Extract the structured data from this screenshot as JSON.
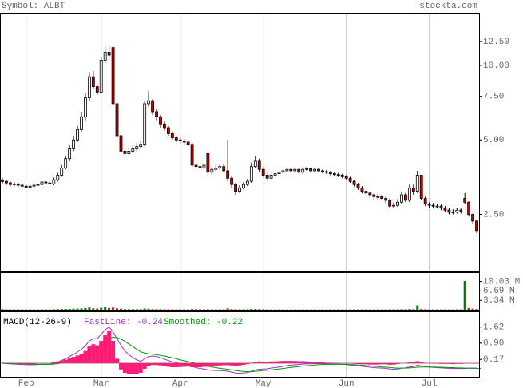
{
  "chart_data": [
    {
      "type": "candlestick",
      "title": "Symbol: ALBT",
      "source": "stockta.com",
      "log_scale": true,
      "xlim": [
        -0.6,
        120.6
      ],
      "xticks": [
        {
          "value": 6,
          "label": "Feb"
        },
        {
          "value": 25,
          "label": "Mar"
        },
        {
          "value": 45,
          "label": "Apr"
        },
        {
          "value": 66,
          "label": "May"
        },
        {
          "value": 87,
          "label": "Jun"
        },
        {
          "value": 108,
          "label": "Jul"
        }
      ],
      "ylim": [
        1.47,
        16.2
      ],
      "yticks": [
        {
          "value": 12.5,
          "label": "12.50"
        },
        {
          "value": 10,
          "label": "10.00"
        },
        {
          "value": 7.5,
          "label": "7.50"
        },
        {
          "value": 5,
          "label": "5.00"
        },
        {
          "value": 2.5,
          "label": "2.50"
        }
      ],
      "grid": true,
      "up_color": "#ffffff",
      "down_color": "#cc0000",
      "outline_color": "#000000",
      "open": [
        3.42,
        3.4,
        3.35,
        3.3,
        3.32,
        3.28,
        3.25,
        3.22,
        3.25,
        3.28,
        3.3,
        3.38,
        3.35,
        3.32,
        3.45,
        3.6,
        3.85,
        4.2,
        4.6,
        5.0,
        5.5,
        6.2,
        7.4,
        9.0,
        8.2,
        7.8,
        10.5,
        11.3,
        11.8,
        7.0,
        5.2,
        4.5,
        4.4,
        4.5,
        4.6,
        4.7,
        4.8,
        7.0,
        7.2,
        6.5,
        6.2,
        5.8,
        5.6,
        5.3,
        5.1,
        5.0,
        4.95,
        4.9,
        4.8,
        3.95,
        3.9,
        3.85,
        4.4,
        3.7,
        3.8,
        3.85,
        3.9,
        3.75,
        3.5,
        3.3,
        3.1,
        3.2,
        3.3,
        3.4,
        3.9,
        4.1,
        3.8,
        3.6,
        3.5,
        3.6,
        3.65,
        3.7,
        3.75,
        3.8,
        3.75,
        3.8,
        3.7,
        3.8,
        3.82,
        3.75,
        3.8,
        3.75,
        3.72,
        3.7,
        3.65,
        3.62,
        3.6,
        3.55,
        3.5,
        3.4,
        3.3,
        3.2,
        3.1,
        3.05,
        3.0,
        2.95,
        2.95,
        2.9,
        2.85,
        2.7,
        2.72,
        2.8,
        3.0,
        2.85,
        3.2,
        3.1,
        3.6,
        2.9,
        2.75,
        2.72,
        2.7,
        2.7,
        2.65,
        2.6,
        2.55,
        2.56,
        2.6,
        2.9,
        2.8,
        2.5,
        2.35
      ],
      "high": [
        3.5,
        3.45,
        3.4,
        3.38,
        3.36,
        3.33,
        3.3,
        3.3,
        3.33,
        3.36,
        3.6,
        3.44,
        3.4,
        3.52,
        3.68,
        3.95,
        4.3,
        4.75,
        5.2,
        5.7,
        6.5,
        7.7,
        9.4,
        9.5,
        8.4,
        10.8,
        12.0,
        12.1,
        11.9,
        7.0,
        5.4,
        4.7,
        4.65,
        4.75,
        4.85,
        4.95,
        7.2,
        7.9,
        7.3,
        6.7,
        6.3,
        5.95,
        5.7,
        5.4,
        5.2,
        5.1,
        5.05,
        5.0,
        4.85,
        4.05,
        4.0,
        4.05,
        4.5,
        3.9,
        3.95,
        4.0,
        4.0,
        5.0,
        3.55,
        3.35,
        3.28,
        3.38,
        3.48,
        4.05,
        4.3,
        4.2,
        3.9,
        3.7,
        3.7,
        3.72,
        3.78,
        3.82,
        3.88,
        3.85,
        3.88,
        3.85,
        3.88,
        3.9,
        3.86,
        3.86,
        3.85,
        3.8,
        3.78,
        3.75,
        3.7,
        3.68,
        3.65,
        3.6,
        3.55,
        3.45,
        3.35,
        3.25,
        3.15,
        3.1,
        3.05,
        3.02,
        3.0,
        2.95,
        2.9,
        2.8,
        2.88,
        3.1,
        3.05,
        3.3,
        3.3,
        3.75,
        3.6,
        2.95,
        2.8,
        2.78,
        2.76,
        2.74,
        2.7,
        2.65,
        2.62,
        2.66,
        2.64,
        3.05,
        2.82,
        2.52,
        2.38
      ],
      "low": [
        3.32,
        3.28,
        3.24,
        3.25,
        3.22,
        3.2,
        3.18,
        3.18,
        3.2,
        3.22,
        3.26,
        3.3,
        3.26,
        3.28,
        3.4,
        3.55,
        3.8,
        4.1,
        4.5,
        4.9,
        5.4,
        6.0,
        7.2,
        8.0,
        7.6,
        7.7,
        10.2,
        10.8,
        6.8,
        4.9,
        4.3,
        4.2,
        4.3,
        4.4,
        4.5,
        4.6,
        4.7,
        6.8,
        6.3,
        6.0,
        5.6,
        5.45,
        5.2,
        5.0,
        4.9,
        4.85,
        4.8,
        4.7,
        3.85,
        3.8,
        3.75,
        3.8,
        3.6,
        3.6,
        3.75,
        3.8,
        3.7,
        3.4,
        3.2,
        3.0,
        3.05,
        3.15,
        3.25,
        3.35,
        3.85,
        3.7,
        3.5,
        3.4,
        3.45,
        3.55,
        3.6,
        3.65,
        3.7,
        3.68,
        3.7,
        3.65,
        3.65,
        3.74,
        3.7,
        3.7,
        3.7,
        3.66,
        3.64,
        3.6,
        3.56,
        3.54,
        3.5,
        3.44,
        3.35,
        3.24,
        3.14,
        3.04,
        2.98,
        2.9,
        2.85,
        2.88,
        2.84,
        2.78,
        2.64,
        2.66,
        2.68,
        2.75,
        2.8,
        2.8,
        3.0,
        3.05,
        2.85,
        2.7,
        2.66,
        2.64,
        2.64,
        2.6,
        2.55,
        2.5,
        2.5,
        2.52,
        2.52,
        2.75,
        2.45,
        2.3,
        2.1
      ],
      "close": [
        3.4,
        3.35,
        3.3,
        3.32,
        3.28,
        3.25,
        3.22,
        3.25,
        3.28,
        3.3,
        3.38,
        3.35,
        3.32,
        3.45,
        3.6,
        3.85,
        4.2,
        4.6,
        5.0,
        5.5,
        6.2,
        7.4,
        9.0,
        8.2,
        7.8,
        10.5,
        11.3,
        11.0,
        7.0,
        5.2,
        4.5,
        4.4,
        4.5,
        4.6,
        4.7,
        4.8,
        7.0,
        7.2,
        6.5,
        6.2,
        5.8,
        5.6,
        5.3,
        5.1,
        5.0,
        4.95,
        4.9,
        4.8,
        3.95,
        3.9,
        3.85,
        3.95,
        3.7,
        3.8,
        3.85,
        3.9,
        3.75,
        3.5,
        3.3,
        3.1,
        3.2,
        3.3,
        3.4,
        3.9,
        4.1,
        3.8,
        3.6,
        3.5,
        3.6,
        3.65,
        3.7,
        3.75,
        3.8,
        3.75,
        3.8,
        3.7,
        3.8,
        3.82,
        3.75,
        3.8,
        3.75,
        3.72,
        3.7,
        3.65,
        3.62,
        3.6,
        3.55,
        3.5,
        3.4,
        3.3,
        3.2,
        3.1,
        3.05,
        3.0,
        2.95,
        2.95,
        2.9,
        2.85,
        2.7,
        2.72,
        2.8,
        3.0,
        2.85,
        3.2,
        3.1,
        3.6,
        2.9,
        2.75,
        2.72,
        2.7,
        2.7,
        2.65,
        2.6,
        2.55,
        2.56,
        2.6,
        2.58,
        2.8,
        2.5,
        2.35,
        2.15
      ]
    },
    {
      "type": "volume",
      "up_color": "#008000",
      "down_color": "#993333",
      "ylim": [
        0,
        13
      ],
      "yticks": [
        {
          "value": 10.03,
          "label": "10.03 M"
        },
        {
          "value": 6.69,
          "label": "6.69 M"
        },
        {
          "value": 3.34,
          "label": "3.34 M"
        }
      ],
      "values": [
        0.2,
        0.15,
        0.12,
        0.1,
        0.12,
        0.1,
        0.1,
        0.12,
        0.1,
        0.1,
        0.15,
        0.12,
        0.1,
        0.15,
        0.2,
        0.25,
        0.3,
        0.3,
        0.35,
        0.4,
        0.45,
        0.6,
        0.8,
        0.5,
        0.4,
        0.7,
        0.9,
        0.6,
        0.8,
        0.5,
        0.35,
        0.25,
        0.2,
        0.2,
        0.2,
        0.2,
        0.4,
        0.35,
        0.25,
        0.2,
        0.2,
        0.15,
        0.15,
        0.15,
        0.12,
        0.12,
        0.12,
        0.12,
        0.25,
        0.2,
        0.15,
        0.15,
        0.2,
        0.15,
        0.12,
        0.12,
        0.15,
        0.5,
        0.25,
        0.2,
        0.15,
        0.15,
        0.15,
        0.25,
        0.25,
        0.2,
        0.15,
        0.12,
        0.1,
        0.1,
        0.1,
        0.1,
        0.1,
        0.1,
        0.1,
        0.1,
        0.1,
        0.1,
        0.1,
        0.1,
        0.1,
        0.1,
        0.1,
        0.1,
        0.1,
        0.1,
        0.1,
        0.1,
        0.12,
        0.12,
        0.12,
        0.12,
        0.12,
        0.12,
        0.12,
        0.12,
        0.12,
        0.12,
        0.15,
        0.15,
        0.15,
        0.2,
        0.15,
        0.25,
        0.2,
        1.5,
        0.3,
        0.15,
        0.12,
        0.12,
        0.12,
        0.12,
        0.12,
        0.12,
        0.12,
        0.12,
        0.12,
        10.2,
        0.6,
        0.4,
        0.3
      ]
    },
    {
      "type": "macd",
      "title": "MACD(12-26-9)",
      "ylim": [
        -0.61,
        2.29
      ],
      "yticks": [
        1.62,
        {
          "value": 0.9,
          "label": "0.90"
        },
        0.17
      ],
      "series": [
        {
          "name": "FastLine: -0.24",
          "type": "line",
          "color": "#9933cc",
          "values": [
            0.0,
            -0.02,
            -0.03,
            -0.04,
            -0.05,
            -0.06,
            -0.07,
            -0.07,
            -0.07,
            -0.06,
            -0.05,
            -0.05,
            -0.05,
            0.0,
            0.05,
            0.12,
            0.2,
            0.3,
            0.4,
            0.5,
            0.62,
            0.78,
            1.0,
            1.1,
            1.1,
            1.3,
            1.5,
            1.62,
            1.4,
            1.1,
            0.8,
            0.55,
            0.38,
            0.25,
            0.15,
            0.08,
            0.2,
            0.3,
            0.32,
            0.3,
            0.25,
            0.18,
            0.12,
            0.06,
            0.02,
            -0.02,
            -0.05,
            -0.08,
            -0.15,
            -0.2,
            -0.24,
            -0.26,
            -0.3,
            -0.32,
            -0.33,
            -0.33,
            -0.34,
            -0.36,
            -0.4,
            -0.44,
            -0.45,
            -0.44,
            -0.42,
            -0.36,
            -0.3,
            -0.27,
            -0.26,
            -0.25,
            -0.22,
            -0.2,
            -0.17,
            -0.14,
            -0.11,
            -0.09,
            -0.07,
            -0.06,
            -0.04,
            -0.03,
            -0.03,
            -0.02,
            -0.02,
            -0.02,
            -0.03,
            -0.03,
            -0.04,
            -0.04,
            -0.05,
            -0.06,
            -0.08,
            -0.1,
            -0.12,
            -0.14,
            -0.16,
            -0.18,
            -0.2,
            -0.21,
            -0.22,
            -0.23,
            -0.26,
            -0.27,
            -0.26,
            -0.22,
            -0.21,
            -0.17,
            -0.15,
            -0.09,
            -0.12,
            -0.15,
            -0.17,
            -0.19,
            -0.2,
            -0.21,
            -0.22,
            -0.23,
            -0.24,
            -0.24,
            -0.24,
            -0.24,
            -0.22,
            -0.23,
            -0.23,
            -0.24
          ]
        },
        {
          "name": "Smoothed: -0.22",
          "type": "line",
          "color": "#009900",
          "values": [
            0.0,
            0.0,
            -0.01,
            -0.01,
            -0.02,
            -0.03,
            -0.03,
            -0.04,
            -0.04,
            -0.05,
            -0.05,
            -0.05,
            -0.05,
            -0.04,
            -0.02,
            0.01,
            0.05,
            0.1,
            0.16,
            0.23,
            0.31,
            0.4,
            0.52,
            0.64,
            0.73,
            0.85,
            0.98,
            1.1,
            1.16,
            1.15,
            1.08,
            0.98,
            0.86,
            0.74,
            0.62,
            0.51,
            0.45,
            0.42,
            0.4,
            0.38,
            0.35,
            0.32,
            0.28,
            0.24,
            0.2,
            0.15,
            0.11,
            0.07,
            0.03,
            -0.02,
            -0.06,
            -0.1,
            -0.14,
            -0.17,
            -0.2,
            -0.23,
            -0.25,
            -0.27,
            -0.3,
            -0.33,
            -0.35,
            -0.37,
            -0.38,
            -0.38,
            -0.36,
            -0.35,
            -0.33,
            -0.32,
            -0.3,
            -0.28,
            -0.26,
            -0.24,
            -0.21,
            -0.19,
            -0.17,
            -0.15,
            -0.13,
            -0.11,
            -0.1,
            -0.08,
            -0.07,
            -0.06,
            -0.05,
            -0.05,
            -0.05,
            -0.05,
            -0.05,
            -0.05,
            -0.06,
            -0.07,
            -0.08,
            -0.09,
            -0.11,
            -0.12,
            -0.14,
            -0.15,
            -0.17,
            -0.18,
            -0.19,
            -0.21,
            -0.22,
            -0.22,
            -0.22,
            -0.21,
            -0.2,
            -0.18,
            -0.17,
            -0.17,
            -0.17,
            -0.17,
            -0.18,
            -0.18,
            -0.19,
            -0.2,
            -0.2,
            -0.21,
            -0.21,
            -0.22,
            -0.22,
            -0.22,
            -0.22
          ]
        },
        {
          "type": "bar",
          "color": "#ff1a75",
          "values": [
            0.02,
            0.01,
            0.0,
            -0.01,
            -0.02,
            -0.02,
            -0.03,
            -0.03,
            -0.02,
            -0.01,
            0.0,
            0.0,
            0.0,
            0.05,
            0.08,
            0.12,
            0.16,
            0.22,
            0.28,
            0.34,
            0.42,
            0.55,
            0.75,
            0.85,
            0.8,
            1.0,
            1.25,
            1.45,
            1.0,
            0.2,
            -0.28,
            -0.43,
            -0.48,
            -0.49,
            -0.47,
            -0.43,
            -0.25,
            -0.12,
            -0.08,
            -0.08,
            -0.1,
            -0.14,
            -0.16,
            -0.18,
            -0.18,
            -0.17,
            -0.16,
            -0.15,
            -0.18,
            -0.18,
            -0.18,
            -0.16,
            -0.16,
            -0.15,
            -0.13,
            -0.1,
            -0.09,
            -0.09,
            -0.1,
            -0.11,
            -0.1,
            -0.07,
            -0.04,
            0.02,
            0.06,
            0.08,
            0.07,
            0.07,
            0.08,
            0.08,
            0.09,
            0.1,
            0.1,
            0.1,
            0.1,
            0.09,
            0.09,
            0.08,
            0.07,
            0.06,
            0.05,
            0.04,
            0.02,
            0.02,
            0.01,
            0.01,
            0.0,
            -0.01,
            -0.02,
            -0.03,
            -0.04,
            -0.05,
            -0.05,
            -0.06,
            -0.06,
            -0.06,
            -0.05,
            -0.05,
            -0.07,
            -0.06,
            -0.04,
            0.0,
            0.01,
            0.04,
            0.05,
            0.09,
            0.05,
            0.02,
            0.0,
            -0.02,
            -0.02,
            -0.03,
            -0.03,
            -0.03,
            -0.04,
            -0.03,
            -0.03,
            -0.02,
            0.01,
            -0.01,
            -0.02
          ]
        }
      ]
    }
  ]
}
